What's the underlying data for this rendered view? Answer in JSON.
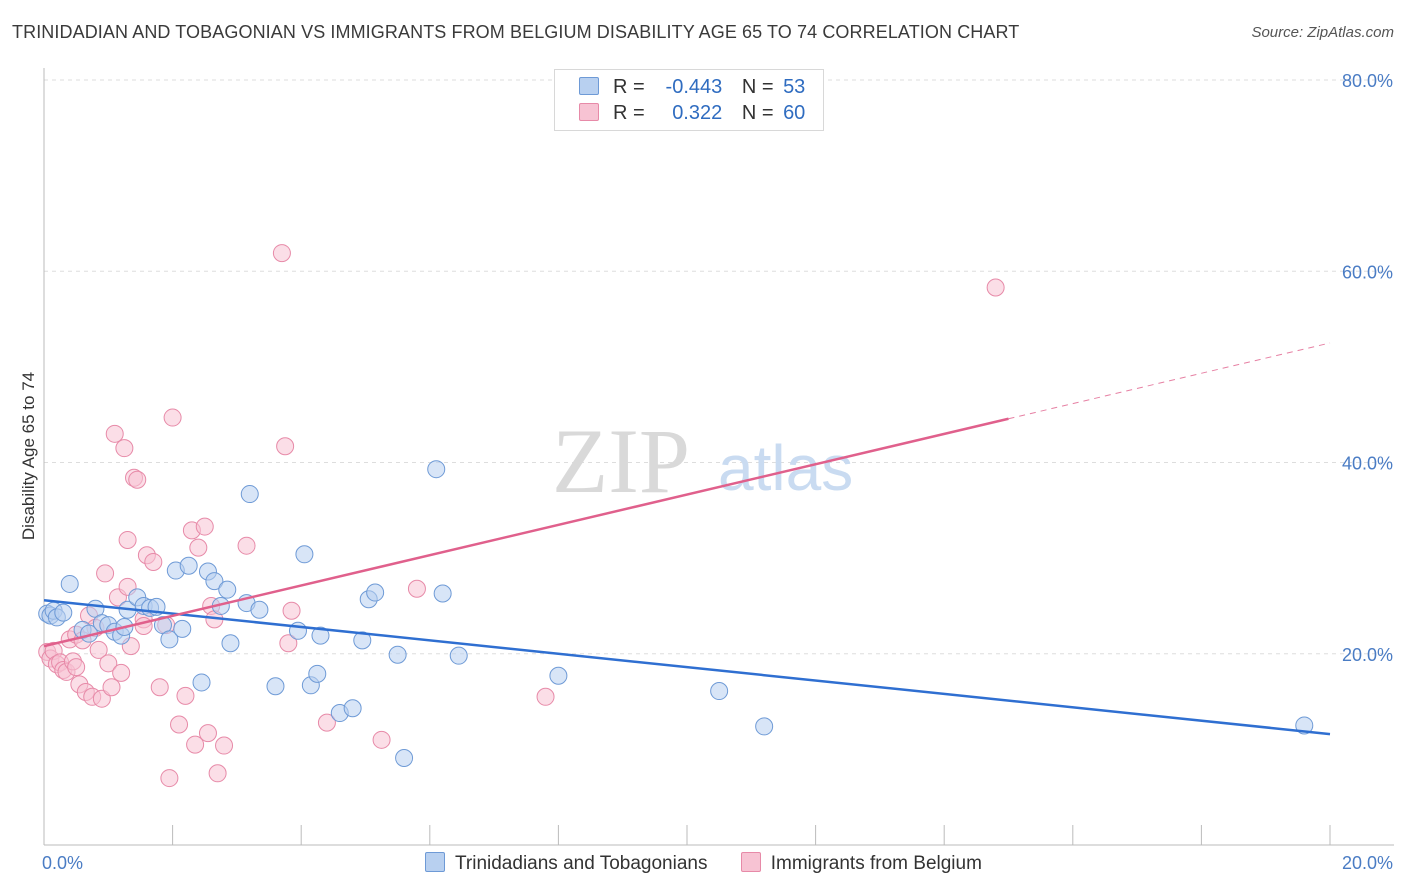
{
  "title": "TRINIDADIAN AND TOBAGONIAN VS IMMIGRANTS FROM BELGIUM DISABILITY AGE 65 TO 74 CORRELATION CHART",
  "source": "Source: ZipAtlas.com",
  "watermark": {
    "zip": "ZIP",
    "atlas": "atlas"
  },
  "legend": {
    "rows": [
      {
        "r_label": "R =",
        "r_value": "-0.443",
        "n_label": "N =",
        "n_value": "53"
      },
      {
        "r_label": "R =",
        "r_value": "0.322",
        "n_label": "N =",
        "n_value": "60"
      }
    ]
  },
  "colors": {
    "blue_fill": "#b8d0f0",
    "blue_stroke": "#6e9ad6",
    "blue_line": "#2f6fd1",
    "pink_fill": "#f7c3d3",
    "pink_stroke": "#e78aa8",
    "pink_line": "#e0608c",
    "grid": "#dddddd",
    "axis": "#bbbbbb"
  },
  "chart_data": {
    "type": "scatter",
    "title": "TRINIDADIAN AND TOBAGONIAN VS IMMIGRANTS FROM BELGIUM DISABILITY AGE 65 TO 74 CORRELATION CHART",
    "xlabel": "",
    "ylabel": "Disability Age 65 to 74",
    "xlim": [
      0,
      20
    ],
    "ylim": [
      0,
      80
    ],
    "x_tick_labels": [
      "0.0%",
      "20.0%"
    ],
    "y_ticks": [
      20,
      40,
      60,
      80
    ],
    "y_tick_labels": [
      "20.0%",
      "40.0%",
      "60.0%",
      "80.0%"
    ],
    "series": [
      {
        "name": "Trinidadians and Tobagonians",
        "color": "#b8d0f0",
        "trend": {
          "x": [
            0,
            20
          ],
          "y": [
            25.6,
            11.6
          ],
          "solid_until": 20
        },
        "points": [
          [
            0.05,
            24.2
          ],
          [
            0.1,
            24.0
          ],
          [
            0.15,
            24.5
          ],
          [
            0.2,
            23.8
          ],
          [
            0.3,
            24.3
          ],
          [
            0.4,
            27.3
          ],
          [
            0.6,
            22.5
          ],
          [
            0.7,
            22.1
          ],
          [
            0.8,
            24.7
          ],
          [
            0.9,
            23.2
          ],
          [
            1.0,
            23.0
          ],
          [
            1.1,
            22.3
          ],
          [
            1.2,
            21.9
          ],
          [
            1.25,
            22.8
          ],
          [
            1.3,
            24.6
          ],
          [
            1.45,
            25.9
          ],
          [
            1.55,
            25.0
          ],
          [
            1.65,
            24.8
          ],
          [
            1.75,
            24.9
          ],
          [
            1.85,
            23.0
          ],
          [
            1.95,
            21.5
          ],
          [
            2.05,
            28.7
          ],
          [
            2.15,
            22.6
          ],
          [
            2.25,
            29.2
          ],
          [
            2.45,
            17.0
          ],
          [
            2.55,
            28.6
          ],
          [
            2.65,
            27.6
          ],
          [
            2.75,
            25.0
          ],
          [
            2.85,
            26.7
          ],
          [
            2.9,
            21.1
          ],
          [
            3.15,
            25.3
          ],
          [
            3.2,
            36.7
          ],
          [
            3.35,
            24.6
          ],
          [
            3.6,
            16.6
          ],
          [
            3.95,
            22.4
          ],
          [
            4.05,
            30.4
          ],
          [
            4.15,
            16.7
          ],
          [
            4.25,
            17.9
          ],
          [
            4.3,
            21.9
          ],
          [
            4.6,
            13.8
          ],
          [
            4.8,
            14.3
          ],
          [
            4.95,
            21.4
          ],
          [
            5.05,
            25.7
          ],
          [
            5.15,
            26.4
          ],
          [
            5.5,
            19.9
          ],
          [
            5.6,
            9.1
          ],
          [
            6.1,
            39.3
          ],
          [
            6.2,
            26.3
          ],
          [
            6.45,
            19.8
          ],
          [
            8.0,
            17.7
          ],
          [
            10.5,
            16.1
          ],
          [
            11.2,
            12.4
          ],
          [
            19.6,
            12.5
          ]
        ]
      },
      {
        "name": "Immigrants from Belgium",
        "color": "#f7c3d3",
        "trend": {
          "x": [
            0,
            20
          ],
          "y": [
            20.8,
            52.5
          ],
          "solid_until": 15
        },
        "points": [
          [
            0.05,
            20.2
          ],
          [
            0.1,
            19.5
          ],
          [
            0.15,
            20.3
          ],
          [
            0.2,
            18.9
          ],
          [
            0.25,
            19.1
          ],
          [
            0.3,
            18.3
          ],
          [
            0.35,
            18.1
          ],
          [
            0.4,
            21.5
          ],
          [
            0.45,
            19.2
          ],
          [
            0.5,
            22.0
          ],
          [
            0.55,
            16.8
          ],
          [
            0.6,
            21.4
          ],
          [
            0.65,
            16.0
          ],
          [
            0.7,
            24.0
          ],
          [
            0.75,
            15.5
          ],
          [
            0.8,
            22.7
          ],
          [
            0.85,
            20.4
          ],
          [
            0.9,
            15.3
          ],
          [
            0.95,
            28.4
          ],
          [
            1.0,
            19.0
          ],
          [
            1.05,
            16.5
          ],
          [
            1.1,
            43.0
          ],
          [
            1.15,
            25.9
          ],
          [
            1.2,
            18.0
          ],
          [
            1.25,
            41.5
          ],
          [
            1.3,
            27.0
          ],
          [
            1.35,
            20.8
          ],
          [
            1.3,
            31.9
          ],
          [
            1.4,
            38.4
          ],
          [
            1.45,
            38.2
          ],
          [
            1.55,
            23.6
          ],
          [
            1.6,
            30.3
          ],
          [
            1.7,
            29.6
          ],
          [
            1.8,
            16.5
          ],
          [
            1.9,
            23.0
          ],
          [
            1.95,
            7.0
          ],
          [
            2.0,
            44.7
          ],
          [
            2.1,
            12.6
          ],
          [
            2.2,
            15.6
          ],
          [
            2.3,
            32.9
          ],
          [
            2.35,
            10.5
          ],
          [
            2.4,
            31.1
          ],
          [
            2.5,
            33.3
          ],
          [
            2.55,
            11.7
          ],
          [
            2.6,
            25.0
          ],
          [
            2.65,
            23.6
          ],
          [
            2.7,
            7.5
          ],
          [
            2.8,
            10.4
          ],
          [
            3.15,
            31.3
          ],
          [
            3.7,
            61.9
          ],
          [
            3.75,
            41.7
          ],
          [
            3.8,
            21.1
          ],
          [
            3.85,
            24.5
          ],
          [
            4.4,
            12.8
          ],
          [
            5.25,
            11.0
          ],
          [
            5.8,
            26.8
          ],
          [
            7.8,
            15.5
          ],
          [
            14.8,
            58.3
          ],
          [
            0.5,
            18.6
          ],
          [
            1.55,
            22.9
          ]
        ]
      }
    ]
  },
  "bottom_legend": [
    {
      "label": "Trinidadians and Tobagonians"
    },
    {
      "label": "Immigrants from Belgium"
    }
  ]
}
